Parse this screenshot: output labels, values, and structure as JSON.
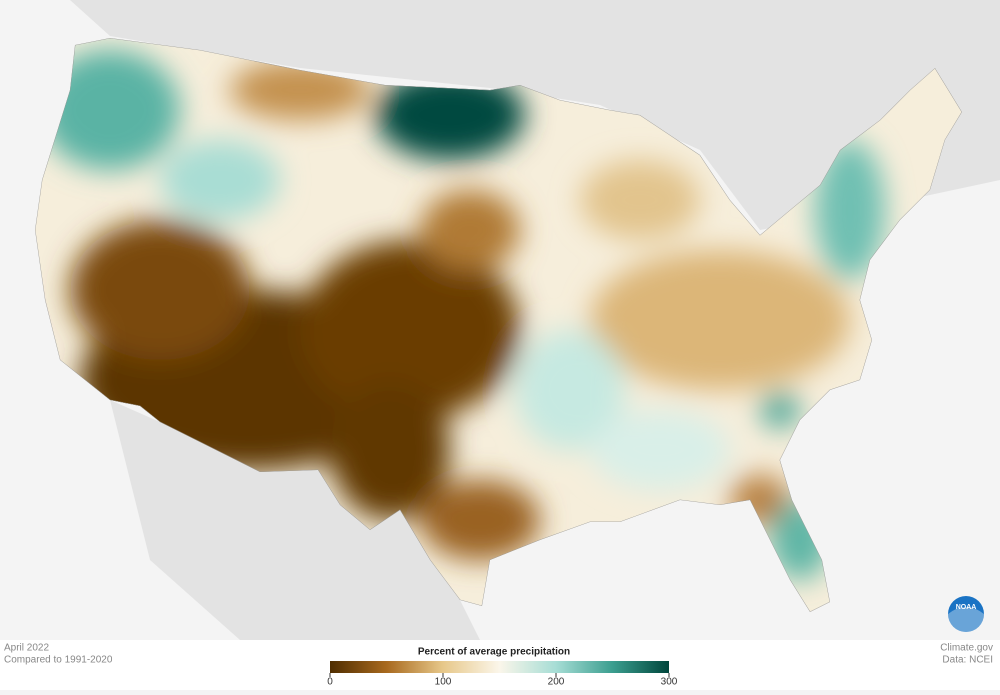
{
  "map": {
    "logo": "NOAA"
  },
  "footer": {
    "date": "April 2022",
    "baseline": "Compared to 1991-2020",
    "credit": "Climate.gov",
    "source": "Data: NCEI"
  },
  "legend": {
    "title": "Percent of average precipitation",
    "range": [
      0,
      300
    ],
    "ticks": [
      0,
      100,
      200,
      300
    ],
    "colors": [
      "#4f2d00",
      "#a8691e",
      "#e7c88a",
      "#fbf6ea",
      "#a6ddd5",
      "#3b9e8f",
      "#00463c"
    ]
  }
}
